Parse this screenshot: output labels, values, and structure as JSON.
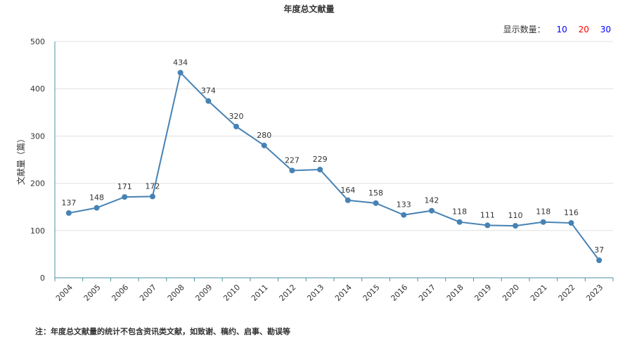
{
  "header": {
    "title": "年度总文献量",
    "count_label": "显示数量：",
    "count_options": [
      {
        "label": "10",
        "color": "#0000ff"
      },
      {
        "label": "20",
        "color": "#ff0000"
      },
      {
        "label": "30",
        "color": "#0000ff"
      }
    ]
  },
  "footnote": "注：年度总文献量的统计不包含资讯类文献，如致谢、稿约、启事、勘误等",
  "chart_data": {
    "type": "line",
    "title": "年度总文献量",
    "xlabel": "",
    "ylabel": "文献量（篇）",
    "ylim": [
      0,
      500
    ],
    "yticks": [
      0,
      100,
      200,
      300,
      400,
      500
    ],
    "grid": true,
    "line_color": "#4682b4",
    "categories": [
      "2004",
      "2005",
      "2006",
      "2007",
      "2008",
      "2009",
      "2010",
      "2011",
      "2012",
      "2013",
      "2014",
      "2015",
      "2016",
      "2017",
      "2018",
      "2019",
      "2020",
      "2021",
      "2022",
      "2023"
    ],
    "values": [
      137,
      148,
      171,
      172,
      434,
      374,
      320,
      280,
      227,
      229,
      164,
      158,
      133,
      142,
      118,
      111,
      110,
      118,
      116,
      37
    ]
  }
}
